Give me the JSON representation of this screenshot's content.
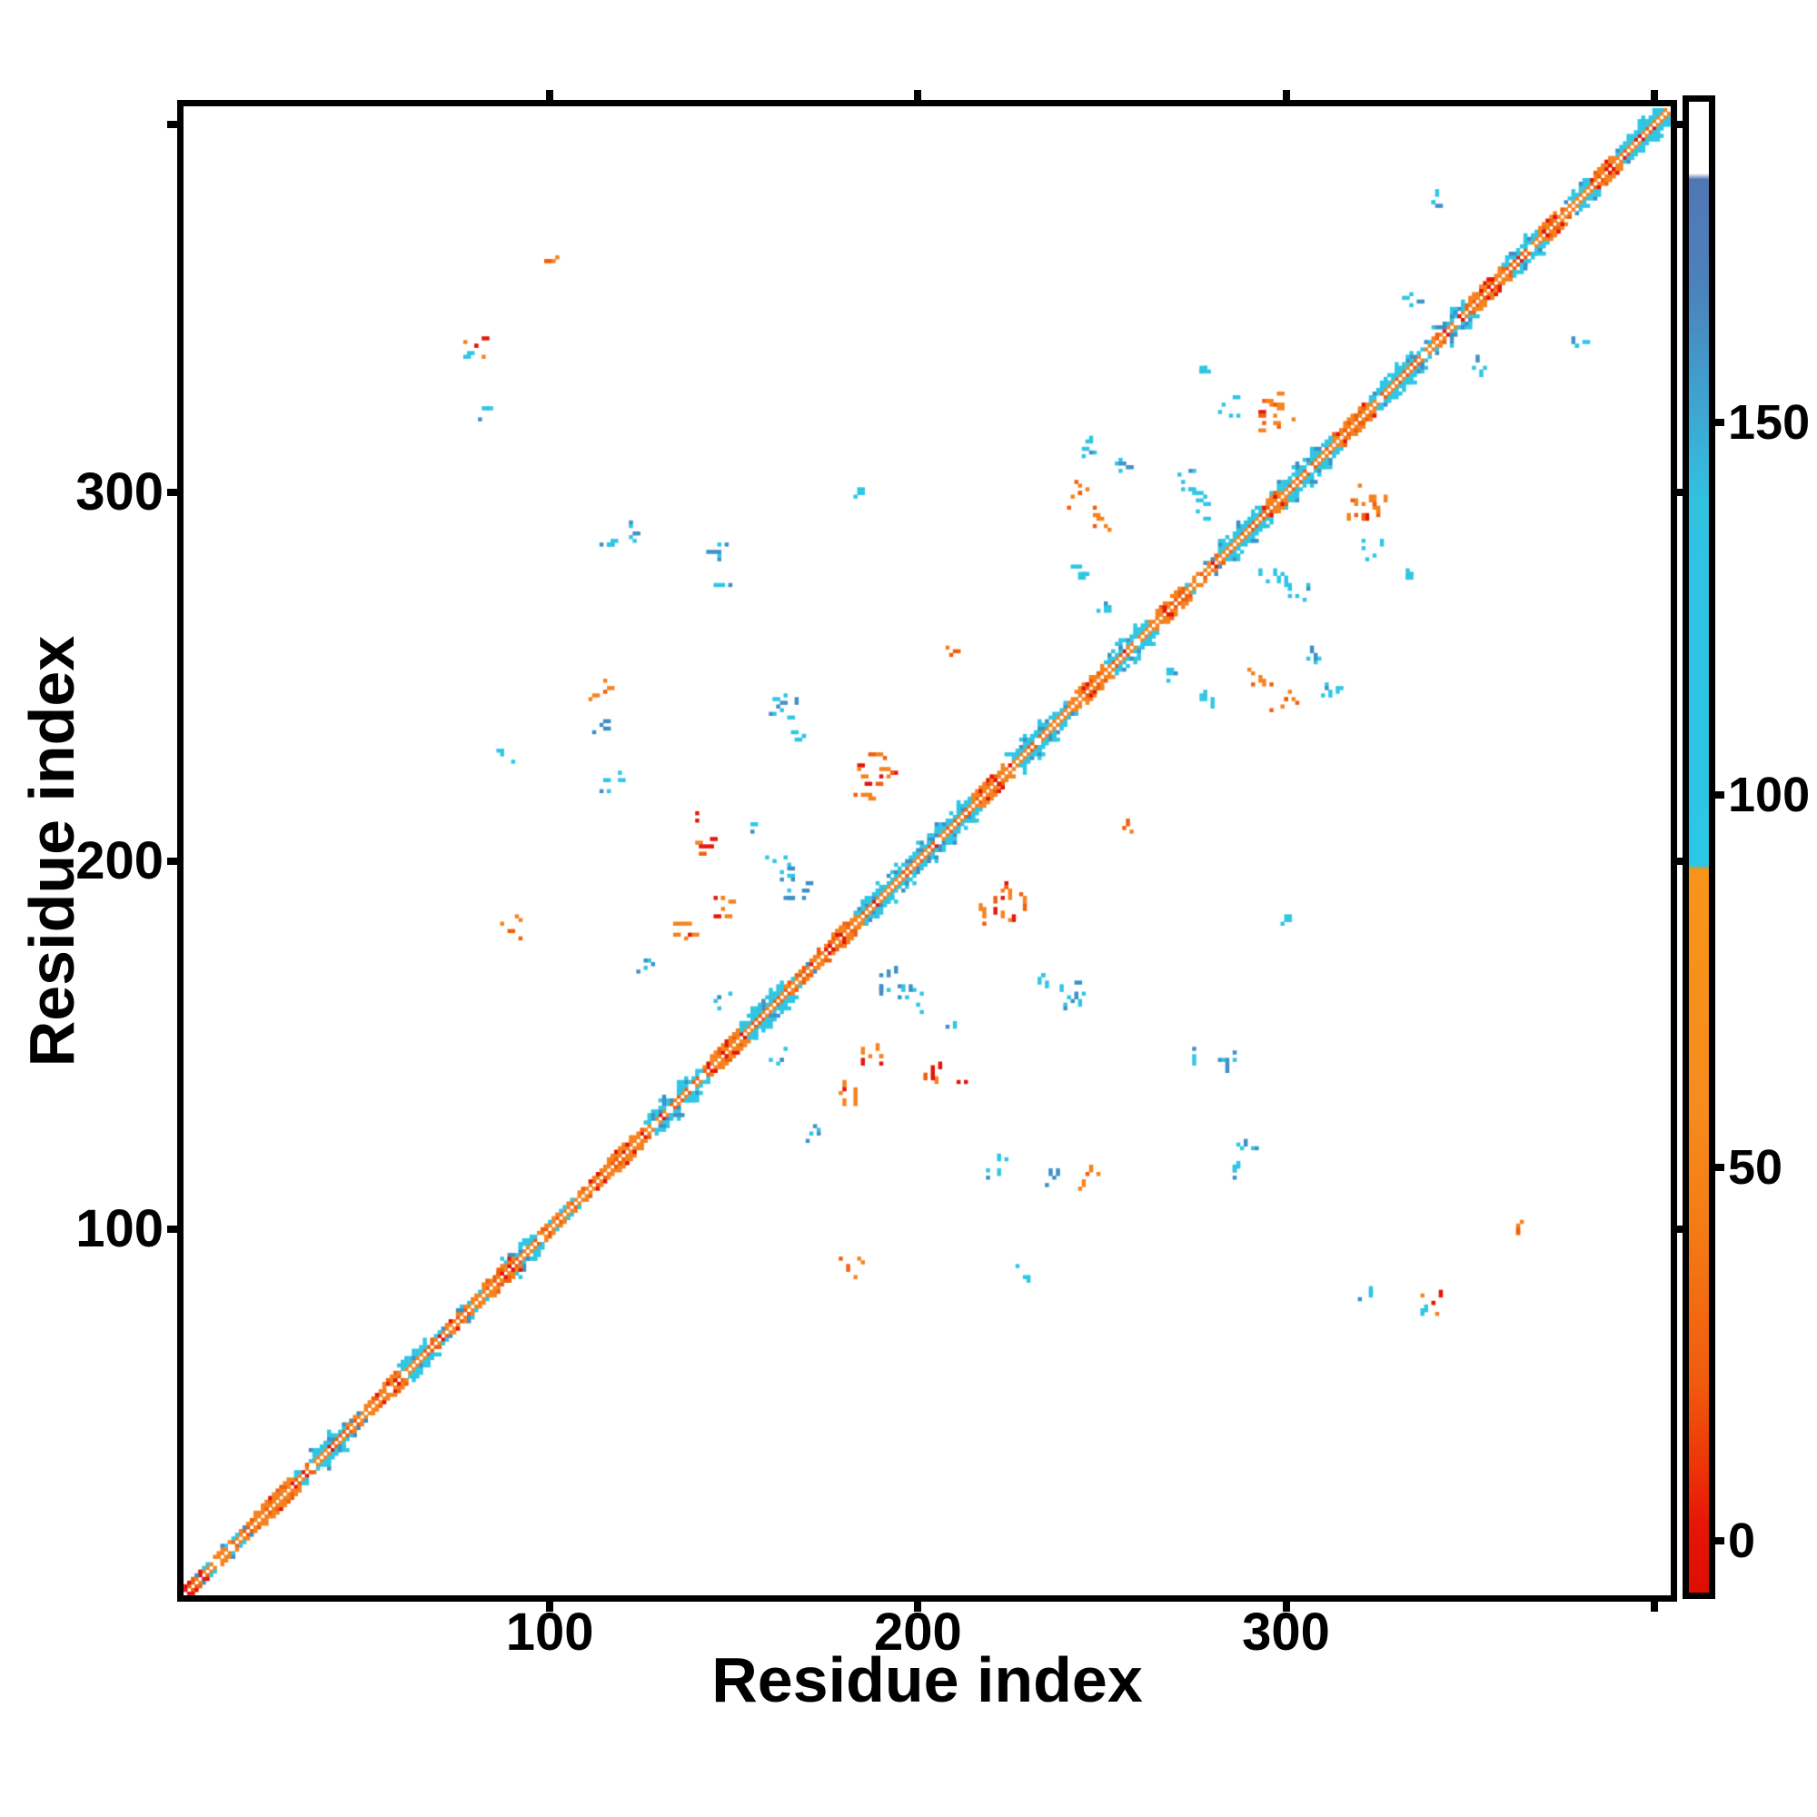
{
  "chart_data": {
    "type": "heatmap",
    "title": "",
    "xlabel": "Residue index",
    "ylabel": "Residue index",
    "x_range": [
      1,
      404
    ],
    "y_range": [
      1,
      404
    ],
    "x_tick_labels": [
      "100",
      "200",
      "300"
    ],
    "x_tick_values": [
      100,
      200,
      300
    ],
    "x_tick_marks": [
      100,
      200,
      300,
      400
    ],
    "y_tick_labels": [
      "100",
      "200",
      "300"
    ],
    "y_tick_values": [
      100,
      200,
      300
    ],
    "y_tick_marks": [
      100,
      200,
      300,
      400
    ],
    "grid": false,
    "legend_position": "none",
    "symmetric": true,
    "description": "Protein residue-residue contact map: continuous near-diagonal secondary-structure band plus symmetric off-diagonal contact clusters; cell color encodes the colorbar value scale",
    "palette": {
      "orange": "#f5821f",
      "orange2": "#ef5f0d",
      "red": "#e41408",
      "cyan": "#2fc6e4",
      "blue": "#3e8fc6",
      "white": "#ffffff",
      "frame": "#000000"
    },
    "colorbar": {
      "tick_labels": [
        "0",
        "50",
        "100",
        "150"
      ],
      "tick_values": [
        0,
        50,
        100,
        150
      ],
      "value_min": -7,
      "value_max": 193,
      "gradient_stops": [
        {
          "pos": 0.0,
          "color": "#dd0e00"
        },
        {
          "pos": 0.045,
          "color": "#e61505"
        },
        {
          "pos": 0.085,
          "color": "#ec3508"
        },
        {
          "pos": 0.14,
          "color": "#f05a0e"
        },
        {
          "pos": 0.25,
          "color": "#f47d15"
        },
        {
          "pos": 0.33,
          "color": "#f68c1c"
        },
        {
          "pos": 0.485,
          "color": "#f7941a"
        },
        {
          "pos": 0.488,
          "color": "#2cc6e6"
        },
        {
          "pos": 0.73,
          "color": "#31c2e2"
        },
        {
          "pos": 0.8,
          "color": "#3fa3cf"
        },
        {
          "pos": 0.875,
          "color": "#4b82bb"
        },
        {
          "pos": 0.948,
          "color": "#5177b3"
        },
        {
          "pos": 0.952,
          "color": "#ffffff"
        },
        {
          "pos": 1.0,
          "color": "#ffffff"
        }
      ]
    },
    "diagonal_band": {
      "cyan_segments": [
        [
          36,
          44
        ],
        [
          60,
          66
        ],
        [
          88,
          96
        ],
        [
          126,
          140
        ],
        [
          152,
          163
        ],
        [
          184,
          214
        ],
        [
          226,
          236
        ],
        [
          252,
          262
        ],
        [
          282,
          312
        ],
        [
          326,
          334
        ],
        [
          342,
          348
        ],
        [
          360,
          368
        ],
        [
          376,
          382
        ],
        [
          390,
          404
        ]
      ],
      "orange_segments": [
        [
          18,
          30
        ],
        [
          52,
          58
        ],
        [
          82,
          88
        ],
        [
          114,
          124
        ],
        [
          142,
          152
        ],
        [
          172,
          182
        ],
        [
          214,
          224
        ],
        [
          242,
          250
        ],
        [
          262,
          272
        ],
        [
          292,
          298
        ],
        [
          312,
          322
        ],
        [
          348,
          358
        ],
        [
          368,
          374
        ],
        [
          382,
          390
        ]
      ],
      "cyan_bulges": [
        40,
        63,
        92,
        131,
        135,
        156,
        160,
        189,
        194,
        205,
        211,
        229,
        233,
        255,
        259,
        287,
        291,
        303,
        307,
        330,
        345,
        365,
        397,
        401
      ],
      "orange_bulges": [
        24,
        57,
        88,
        119,
        148,
        178,
        219,
        246,
        267,
        296,
        317,
        354,
        371,
        387
      ]
    },
    "clusters_upper_triangle": [
      [
        101,
        363,
        "orange",
        2,
        4
      ],
      [
        79,
        340,
        "orange",
        3,
        5
      ],
      [
        77,
        338,
        "cyan",
        2,
        2
      ],
      [
        82,
        322,
        "cyan",
        2,
        3
      ],
      [
        122,
        289,
        "cyan",
        3,
        5
      ],
      [
        116,
        287,
        "blue",
        2,
        4
      ],
      [
        145,
        284,
        "blue",
        3,
        6
      ],
      [
        113,
        246,
        "orange",
        3,
        6
      ],
      [
        88,
        229,
        "cyan",
        2,
        3
      ],
      [
        114,
        236,
        "blue",
        2,
        4
      ],
      [
        164,
        242,
        "cyan",
        4,
        10
      ],
      [
        168,
        234,
        "cyan",
        2,
        4
      ],
      [
        189,
        226,
        "orange",
        5,
        14
      ],
      [
        185,
        218,
        "orange",
        2,
        4
      ],
      [
        156,
        209,
        "cyan",
        2,
        2
      ],
      [
        142,
        204,
        "orange",
        3,
        6
      ],
      [
        163,
        198,
        "cyan",
        4,
        9
      ],
      [
        167,
        192,
        "blue",
        3,
        7
      ],
      [
        148,
        187,
        "orange",
        3,
        7
      ],
      [
        137,
        181,
        "orange",
        3,
        7
      ],
      [
        90,
        182,
        "orange",
        3,
        5
      ],
      [
        127,
        171,
        "cyan",
        3,
        5
      ],
      [
        147,
        162,
        "cyan",
        3,
        5
      ],
      [
        116,
        221,
        "cyan",
        3,
        5
      ],
      [
        140,
        212,
        "red",
        1,
        2
      ],
      [
        208,
        258,
        "orange",
        2,
        3
      ],
      [
        246,
        313,
        "cyan",
        3,
        6
      ],
      [
        244,
        299,
        "orange",
        4,
        8
      ],
      [
        273,
        302,
        "cyan",
        4,
        9
      ],
      [
        277,
        332,
        "cyan",
        2,
        5
      ],
      [
        297,
        322,
        "orange",
        5,
        16
      ],
      [
        285,
        323,
        "cyan",
        3,
        5
      ],
      [
        243,
        278,
        "cyan",
        2,
        5
      ],
      [
        255,
        307,
        "cyan",
        2,
        5
      ],
      [
        250,
        292,
        "orange",
        2,
        5
      ],
      [
        250,
        270,
        "cyan",
        2,
        4
      ],
      [
        278,
        296,
        "cyan",
        3,
        5
      ],
      [
        184,
        300,
        "cyan",
        2,
        4
      ],
      [
        147,
        274,
        "cyan",
        2,
        3
      ],
      [
        341,
        380,
        "cyan",
        2,
        5
      ],
      [
        334,
        352,
        "cyan",
        2,
        4
      ]
    ]
  }
}
